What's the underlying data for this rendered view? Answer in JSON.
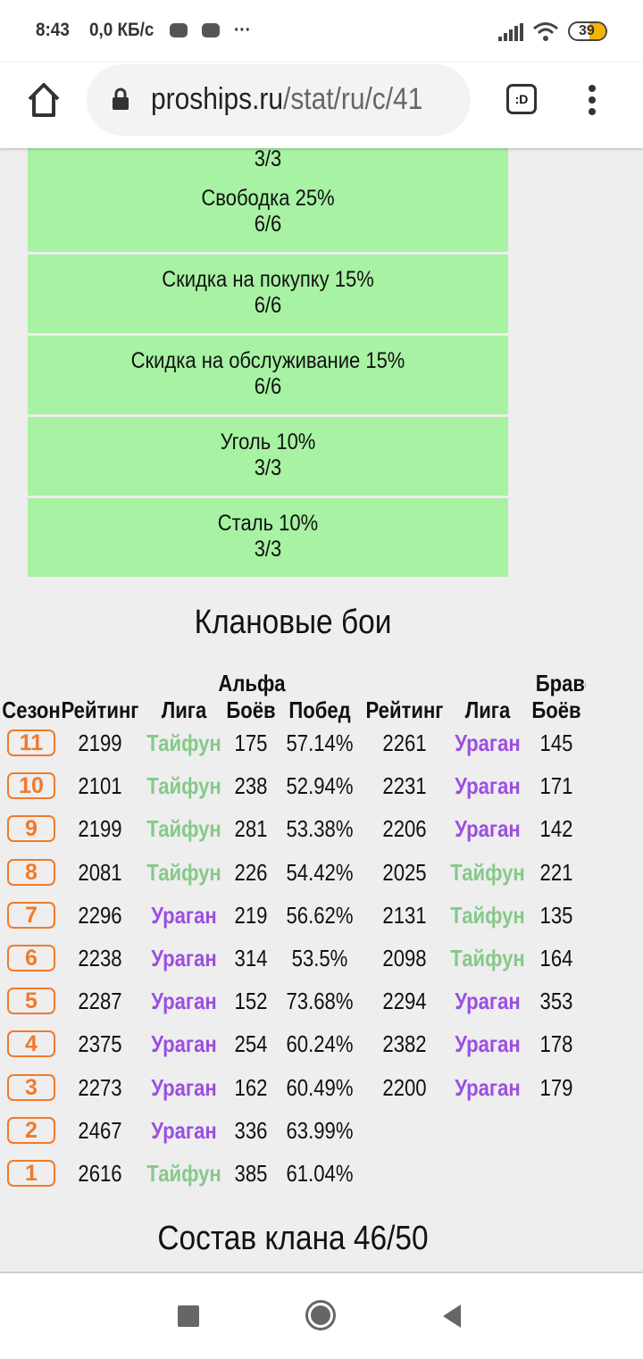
{
  "status_bar": {
    "time": "8:43",
    "net_speed": "0,0 КБ/с",
    "more": "···",
    "battery": "39",
    "colors": {
      "battery": "#f4b400"
    }
  },
  "browser": {
    "url_domain": "proships.ru",
    "url_path": "/stat/ru/c/41",
    "tab_switcher": ":D"
  },
  "bonuses": {
    "partial_top": "3/3",
    "items": [
      {
        "name": "Свободка 25%",
        "value": "6/6"
      },
      {
        "name": "Скидка на покупку 15%",
        "value": "6/6"
      },
      {
        "name": "Скидка на обслуживание 15%",
        "value": "6/6"
      },
      {
        "name": "Уголь 10%",
        "value": "3/3"
      },
      {
        "name": "Сталь 10%",
        "value": "3/3"
      }
    ],
    "color": "#a7f2a3"
  },
  "clan_battles": {
    "title": "Клановые бои",
    "group_alpha": "Альфа",
    "group_bravo": "Браво",
    "headers": [
      "Сезон",
      "Рейтинг",
      "Лига",
      "Боёв",
      "Побед",
      "Рейтинг",
      "Лига",
      "Боёв"
    ],
    "league_colors": {
      "Тайфун": "#86c98a",
      "Ураган": "#9b4fe0"
    },
    "rows": [
      {
        "season": "11",
        "a_rating": "2199",
        "a_league": "Тайфун",
        "a_battles": "175",
        "a_wins": "57.14%",
        "b_rating": "2261",
        "b_league": "Ураган",
        "b_battles": "145"
      },
      {
        "season": "10",
        "a_rating": "2101",
        "a_league": "Тайфун",
        "a_battles": "238",
        "a_wins": "52.94%",
        "b_rating": "2231",
        "b_league": "Ураган",
        "b_battles": "171"
      },
      {
        "season": "9",
        "a_rating": "2199",
        "a_league": "Тайфун",
        "a_battles": "281",
        "a_wins": "53.38%",
        "b_rating": "2206",
        "b_league": "Ураган",
        "b_battles": "142"
      },
      {
        "season": "8",
        "a_rating": "2081",
        "a_league": "Тайфун",
        "a_battles": "226",
        "a_wins": "54.42%",
        "b_rating": "2025",
        "b_league": "Тайфун",
        "b_battles": "221"
      },
      {
        "season": "7",
        "a_rating": "2296",
        "a_league": "Ураган",
        "a_battles": "219",
        "a_wins": "56.62%",
        "b_rating": "2131",
        "b_league": "Тайфун",
        "b_battles": "135"
      },
      {
        "season": "6",
        "a_rating": "2238",
        "a_league": "Ураган",
        "a_battles": "314",
        "a_wins": "53.5%",
        "b_rating": "2098",
        "b_league": "Тайфун",
        "b_battles": "164"
      },
      {
        "season": "5",
        "a_rating": "2287",
        "a_league": "Ураган",
        "a_battles": "152",
        "a_wins": "73.68%",
        "b_rating": "2294",
        "b_league": "Ураган",
        "b_battles": "353"
      },
      {
        "season": "4",
        "a_rating": "2375",
        "a_league": "Ураган",
        "a_battles": "254",
        "a_wins": "60.24%",
        "b_rating": "2382",
        "b_league": "Ураган",
        "b_battles": "178"
      },
      {
        "season": "3",
        "a_rating": "2273",
        "a_league": "Ураган",
        "a_battles": "162",
        "a_wins": "60.49%",
        "b_rating": "2200",
        "b_league": "Ураган",
        "b_battles": "179"
      },
      {
        "season": "2",
        "a_rating": "2467",
        "a_league": "Ураган",
        "a_battles": "336",
        "a_wins": "63.99%"
      },
      {
        "season": "1",
        "a_rating": "2616",
        "a_league": "Тайфун",
        "a_battles": "385",
        "a_wins": "61.04%"
      }
    ]
  },
  "members": {
    "title": "Состав клана 46/50"
  }
}
